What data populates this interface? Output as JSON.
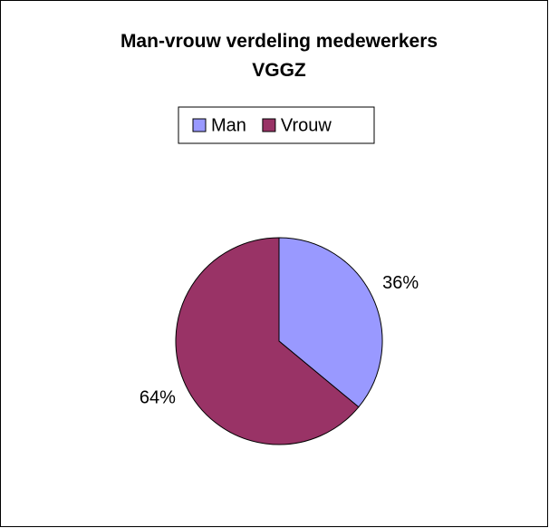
{
  "chart_data": {
    "type": "pie",
    "title": "Man-vrouw verdeling medewerkers VGGZ",
    "categories": [
      "Man",
      "Vrouw"
    ],
    "values": [
      36,
      64
    ],
    "value_labels": [
      "36%",
      "64%"
    ],
    "colors": [
      "#9999ff",
      "#993366"
    ],
    "legend": "top"
  }
}
